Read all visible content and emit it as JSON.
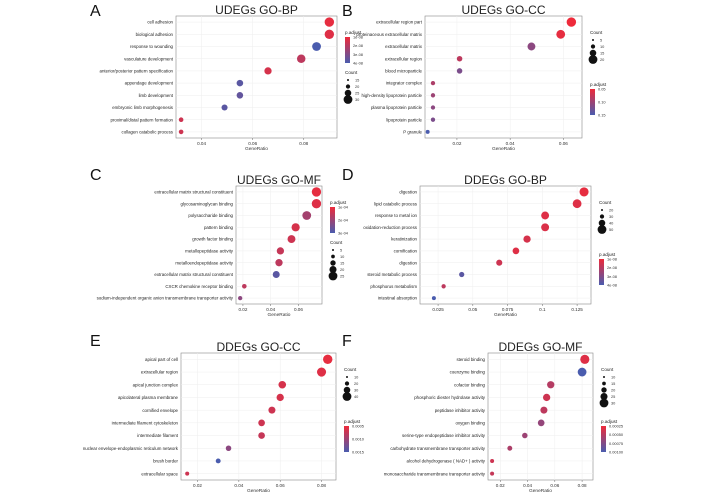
{
  "color_scale": {
    "high": "#ee2a3a",
    "low": "#4a5cae"
  },
  "chart_data": [
    {
      "letter": "A",
      "title": "UDEGs  GO-BP",
      "type": "scatter",
      "xlabel": "GeneRatio",
      "ylabel": "",
      "xticks": [
        0.04,
        0.06,
        0.08
      ],
      "xlim": [
        0.03,
        0.093
      ],
      "categories": [
        "cell adhesion",
        "biological adhesion",
        "response to wounding",
        "vasculature development",
        "anterior/posterior pattern specification",
        "appendage development",
        "limb development",
        "embryonic limb morphogenesis",
        "proximal/distal pattern formation",
        "collagen catabolic process"
      ],
      "x": [
        0.09,
        0.09,
        0.085,
        0.079,
        0.066,
        0.055,
        0.055,
        0.049,
        0.032,
        0.032
      ],
      "size": [
        44,
        44,
        40,
        38,
        30,
        25,
        25,
        22,
        12,
        12
      ],
      "color": [
        0.05,
        0.1,
        1.0,
        0.3,
        0.15,
        0.9,
        0.85,
        0.9,
        0.2,
        0.2
      ],
      "legends": {
        "size_title": "Count",
        "size_labels": [
          "15",
          "20",
          "25",
          "30"
        ],
        "color_title": "p.adjust",
        "color_labels": [
          "1e-08",
          "2e-08",
          "3e-08",
          "4e-08"
        ]
      }
    },
    {
      "letter": "B",
      "title": "UDEGs  GO-CC",
      "type": "scatter",
      "xlabel": "GeneRatio",
      "ylabel": "",
      "xticks": [
        0.02,
        0.04,
        0.06
      ],
      "xlim": [
        0.008,
        0.067
      ],
      "categories": [
        "extracellular region part",
        "proteinaceous extracellular matrix",
        "extracellular matrix",
        "extracellular region",
        "blood microparticle",
        "integrator complex",
        "high-density lipoprotein particle",
        "plasma lipoprotein particle",
        "lipoprotein particle",
        "P granule"
      ],
      "x": [
        0.063,
        0.059,
        0.048,
        0.021,
        0.021,
        0.011,
        0.011,
        0.011,
        0.011,
        0.009
      ],
      "size": [
        44,
        40,
        34,
        18,
        18,
        10,
        10,
        10,
        10,
        8
      ],
      "color": [
        0.0,
        0.05,
        0.6,
        0.3,
        0.7,
        0.4,
        0.5,
        0.6,
        0.7,
        1.0
      ],
      "legends": {
        "size_title": "Count",
        "size_labels": [
          "5",
          "10",
          "15",
          "20"
        ],
        "color_title": "p.adjust",
        "color_labels": [
          "0.05",
          "0.10",
          "0.15"
        ]
      }
    },
    {
      "letter": "C",
      "title": "UDEGs  GO-MF",
      "type": "scatter",
      "xlabel": "GeneRatio",
      "ylabel": "",
      "xticks": [
        0.02,
        0.04,
        0.06
      ],
      "xlim": [
        0.015,
        0.077
      ],
      "categories": [
        "extracellular matrix structural constituent",
        "glycosaminoglycan binding",
        "polysaccharide binding",
        "pattern binding",
        "growth factor binding",
        "metallopeptidase activity",
        "metalloendopeptidase activity",
        "extracellular matrix structural constituent",
        "CXCR chemokine receptor binding",
        "sodium-independent organic anion transmembrane transporter activity"
      ],
      "x": [
        0.073,
        0.073,
        0.066,
        0.058,
        0.055,
        0.047,
        0.046,
        0.044,
        0.021,
        0.018
      ],
      "size": [
        44,
        44,
        40,
        36,
        34,
        30,
        30,
        28,
        12,
        10
      ],
      "color": [
        0.05,
        0.1,
        0.45,
        0.15,
        0.2,
        0.25,
        0.3,
        0.9,
        0.3,
        0.6
      ],
      "legends": {
        "size_title": "Count",
        "size_labels": [
          "5",
          "10",
          "15",
          "20",
          "25"
        ],
        "color_title": "p.adjust",
        "color_labels": [
          "1e-04",
          "2e-04",
          "3e-04"
        ]
      }
    },
    {
      "letter": "D",
      "title": "DDEGs  GO-BP",
      "type": "scatter",
      "xlabel": "GeneRatio",
      "ylabel": "",
      "xticks": [
        0.025,
        0.05,
        0.075,
        0.1,
        0.125
      ],
      "xlim": [
        0.012,
        0.135
      ],
      "categories": [
        "digestion",
        "lipid catabolic process",
        "response to metal ion",
        "oxidation-reduction process",
        "keratinization",
        "cornification",
        "digestion",
        "steroid metabolic process",
        "phosphorus metabolism",
        "intestinal absorption"
      ],
      "x": [
        0.13,
        0.125,
        0.102,
        0.102,
        0.089,
        0.081,
        0.069,
        0.042,
        0.029,
        0.022
      ],
      "size": [
        42,
        40,
        34,
        34,
        30,
        26,
        22,
        16,
        10,
        8
      ],
      "color": [
        0.05,
        0.1,
        0.1,
        0.12,
        0.15,
        0.1,
        0.2,
        0.9,
        0.3,
        1.0
      ],
      "legends": {
        "size_title": "Count",
        "size_labels": [
          "20",
          "30",
          "40",
          "50"
        ],
        "color_title": "p.adjust",
        "color_labels": [
          "1e-08",
          "2e-08",
          "3e-08",
          "4e-08"
        ]
      }
    },
    {
      "letter": "E",
      "title": "DDEGs  GO-CC",
      "type": "scatter",
      "xlabel": "GeneRatio",
      "ylabel": "",
      "xticks": [
        0.02,
        0.04,
        0.06,
        0.08
      ],
      "xlim": [
        0.012,
        0.087
      ],
      "categories": [
        "apical part of cell",
        "extracellular region",
        "apical junction complex",
        "apicolateral plasma membrane",
        "cornified envelope",
        "intermediate filament cytoskeleton",
        "intermediate filament",
        "nuclear envelope-endoplasmic reticulum network",
        "brush border",
        "extracellular space"
      ],
      "x": [
        0.083,
        0.08,
        0.061,
        0.06,
        0.056,
        0.051,
        0.051,
        0.035,
        0.03,
        0.015
      ],
      "size": [
        44,
        42,
        32,
        30,
        28,
        26,
        26,
        18,
        14,
        8
      ],
      "color": [
        0.05,
        0.1,
        0.15,
        0.15,
        0.2,
        0.2,
        0.25,
        0.6,
        1.0,
        0.2
      ],
      "legends": {
        "size_title": "Count",
        "size_labels": [
          "10",
          "20",
          "30",
          "40"
        ],
        "color_title": "p.adjust",
        "color_labels": [
          "0.0005",
          "0.0010",
          "0.0015"
        ]
      }
    },
    {
      "letter": "F",
      "title": "DDEGs  GO-MF",
      "type": "scatter",
      "xlabel": "GeneRatio",
      "ylabel": "",
      "xticks": [
        0.02,
        0.04,
        0.06,
        0.08
      ],
      "xlim": [
        0.011,
        0.088
      ],
      "categories": [
        "steroid binding",
        "coenzyme binding",
        "cofactor binding",
        "phosphoric diester hydrolase activity",
        "peptidase inhibitor activity",
        "oxygen binding",
        "serine-type endopeptidase inhibitor activity",
        "carbohydrate transmembrane transporter activity",
        "alcohol dehydrogenase ( NAD+ ) activity",
        "monosaccharide transmembrane transporter activity"
      ],
      "x": [
        0.082,
        0.08,
        0.057,
        0.054,
        0.052,
        0.05,
        0.038,
        0.027,
        0.014,
        0.014
      ],
      "size": [
        42,
        40,
        30,
        30,
        28,
        26,
        18,
        14,
        8,
        8
      ],
      "color": [
        0.1,
        1.0,
        0.35,
        0.2,
        0.3,
        0.55,
        0.5,
        0.4,
        0.2,
        0.25
      ],
      "legends": {
        "size_title": "Count",
        "size_labels": [
          "10",
          "15",
          "20",
          "25",
          "30"
        ],
        "color_title": "p.adjust",
        "color_labels": [
          "0.00025",
          "0.00050",
          "0.00075",
          "0.00100"
        ]
      }
    }
  ]
}
